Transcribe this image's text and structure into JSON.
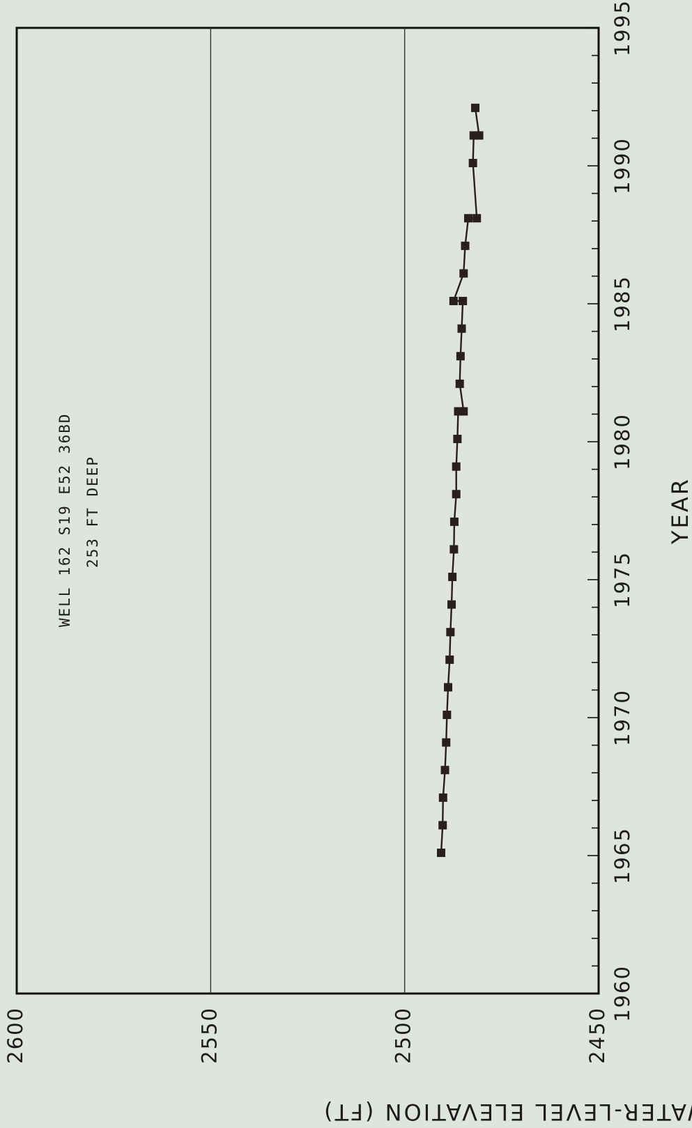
{
  "chart_data": {
    "type": "line",
    "orientation": "rotated-90-clockwise",
    "title": "",
    "annotation": [
      "WELL 162 S19 E52 36BD",
      "253 FT DEEP"
    ],
    "xlabel": "YEAR",
    "ylabel": "WATER-LEVEL ELEVATION (FT)",
    "xlim": [
      1960,
      1995
    ],
    "ylim": [
      2450,
      2600
    ],
    "xticks": [
      "1960",
      "1965",
      "1970",
      "1975",
      "1980",
      "1985",
      "1990",
      "1995"
    ],
    "yticks": [
      "2450",
      "2500",
      "2550",
      "2600"
    ],
    "grid": "horizontal gridlines at 2500 and 2550",
    "series": [
      {
        "marker": "square",
        "color": "#2a1f1f",
        "points": [
          {
            "x": 1965.1,
            "y": 2490.6
          },
          {
            "x": 1966.1,
            "y": 2490.2
          },
          {
            "x": 1967.1,
            "y": 2490.1
          },
          {
            "x": 1968.1,
            "y": 2489.6
          },
          {
            "x": 1969.1,
            "y": 2489.3
          },
          {
            "x": 1970.1,
            "y": 2489.1
          },
          {
            "x": 1971.1,
            "y": 2488.8
          },
          {
            "x": 1972.1,
            "y": 2488.4
          },
          {
            "x": 1973.1,
            "y": 2488.2
          },
          {
            "x": 1974.1,
            "y": 2487.9
          },
          {
            "x": 1975.1,
            "y": 2487.7
          },
          {
            "x": 1976.1,
            "y": 2487.3
          },
          {
            "x": 1977.1,
            "y": 2487.2
          },
          {
            "x": 1978.1,
            "y": 2486.7
          },
          {
            "x": 1979.1,
            "y": 2486.7
          },
          {
            "x": 1980.1,
            "y": 2486.4
          },
          {
            "x": 1981.1,
            "y": 2486.2
          },
          {
            "x": 1981.1,
            "y": 2484.8
          },
          {
            "x": 1982.1,
            "y": 2485.8
          },
          {
            "x": 1983.1,
            "y": 2485.6
          },
          {
            "x": 1984.1,
            "y": 2485.3
          },
          {
            "x": 1985.1,
            "y": 2485.0
          },
          {
            "x": 1985.1,
            "y": 2487.4
          },
          {
            "x": 1986.1,
            "y": 2484.8
          },
          {
            "x": 1987.1,
            "y": 2484.4
          },
          {
            "x": 1988.1,
            "y": 2483.6
          },
          {
            "x": 1988.1,
            "y": 2481.4
          },
          {
            "x": 1990.1,
            "y": 2482.4
          },
          {
            "x": 1991.1,
            "y": 2482.2
          },
          {
            "x": 1991.1,
            "y": 2480.8
          },
          {
            "x": 1992.1,
            "y": 2481.8
          }
        ]
      }
    ]
  }
}
